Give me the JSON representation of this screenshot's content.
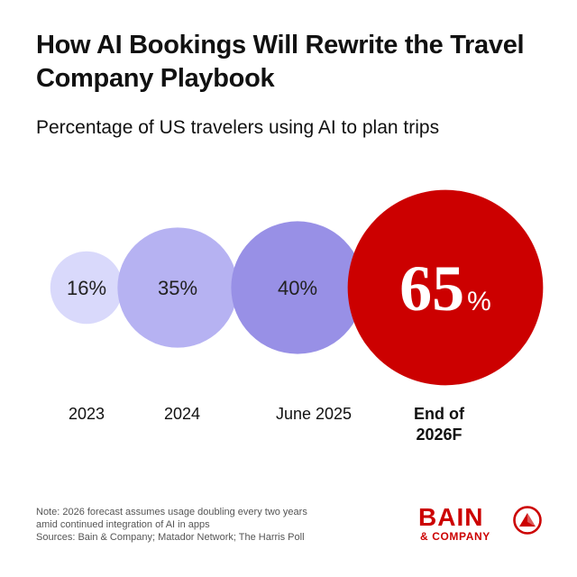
{
  "colors": {
    "bubble_1": "#d9d9fb",
    "bubble_2": "#b6b2f2",
    "bubble_3": "#9890e6",
    "bubble_4": "#cc0000",
    "brand": "#cc0000"
  },
  "chart_data": {
    "type": "bubble",
    "title": "How AI Bookings Will Rewrite the Travel Company Playbook",
    "subtitle": "Percentage of US travelers using AI to plan trips",
    "categories": [
      "2023",
      "2024",
      "June 2025",
      "End of 2026F"
    ],
    "values": [
      16,
      35,
      40,
      65
    ],
    "value_labels": [
      "16%",
      "35%",
      "40%",
      "65"
    ],
    "highlight_unit": "%",
    "category_lines": [
      [
        "2023"
      ],
      [
        "2024"
      ],
      [
        "June 2025"
      ],
      [
        "End of",
        "2026F"
      ]
    ],
    "highlight_index": 3
  },
  "footnote": {
    "lines": [
      "Note: 2026 forecast assumes usage doubling every two years",
      "amid continued integration of AI in apps",
      "Sources: Bain & Company; Matador Network; The Harris Poll"
    ]
  },
  "logo": {
    "word": "BAIN",
    "sub": "& COMPANY",
    "icon": "bain-seal-icon"
  }
}
